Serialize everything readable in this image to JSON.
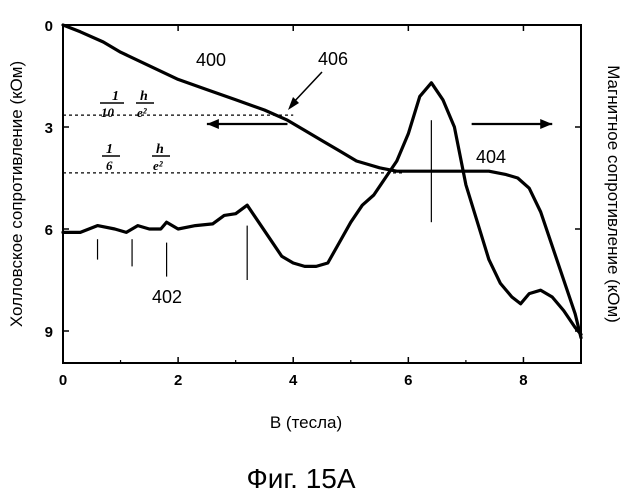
{
  "chart_data": {
    "type": "line",
    "caption": "Фиг. 15A",
    "xlabel": "B (тесла)",
    "ylabel_left": "Холловское сопротивление (кОм)",
    "ylabel_right": "Магнитное сопротивление (кОм)",
    "xlim": [
      0,
      9
    ],
    "ylim": [
      0,
      10
    ],
    "y_inverted": true,
    "x_ticks": [
      0,
      2,
      4,
      6,
      8
    ],
    "x_tick_labels": [
      "0",
      "2",
      "4",
      "6",
      "8"
    ],
    "y_ticks": [
      0,
      3,
      6,
      9
    ],
    "y_tick_labels": [
      "0",
      "3",
      "6",
      "9"
    ],
    "grid": false,
    "series": [
      {
        "name": "400",
        "x": [
          0,
          0.3,
          0.7,
          1.0,
          1.5,
          2.0,
          2.5,
          3.0,
          3.5,
          3.9,
          4.2,
          4.5,
          4.8,
          5.1,
          5.3,
          5.5,
          5.8,
          6.2,
          6.6,
          7.0,
          7.4,
          7.7,
          7.9,
          8.1,
          8.3,
          8.5,
          8.7,
          8.9,
          9.0
        ],
        "y": [
          0,
          0.2,
          0.5,
          0.8,
          1.2,
          1.6,
          1.9,
          2.2,
          2.5,
          2.8,
          3.1,
          3.4,
          3.7,
          4.0,
          4.1,
          4.2,
          4.3,
          4.3,
          4.3,
          4.3,
          4.3,
          4.4,
          4.5,
          4.8,
          5.5,
          6.5,
          7.5,
          8.5,
          9.2
        ]
      },
      {
        "name": "402",
        "x": [
          0,
          0.3,
          0.6,
          0.9,
          1.1,
          1.3,
          1.5,
          1.7,
          1.8,
          2.0,
          2.3,
          2.6,
          2.8,
          3.0,
          3.2,
          3.4,
          3.6,
          3.8,
          4.0,
          4.2,
          4.4,
          4.6,
          4.8,
          5.0,
          5.2,
          5.4,
          5.6,
          5.8,
          6.0,
          6.2,
          6.4,
          6.6,
          6.8,
          7.0,
          7.2,
          7.4,
          7.6,
          7.8,
          7.95,
          8.1,
          8.3,
          8.5,
          8.7,
          8.9,
          9.0
        ],
        "y": [
          6.1,
          6.1,
          5.9,
          6.0,
          6.1,
          5.9,
          6.0,
          6.0,
          5.8,
          6.0,
          5.9,
          5.85,
          5.6,
          5.55,
          5.3,
          5.8,
          6.3,
          6.8,
          7.0,
          7.1,
          7.1,
          7.0,
          6.4,
          5.8,
          5.3,
          5.0,
          4.5,
          4.0,
          3.2,
          2.1,
          1.7,
          2.2,
          3.0,
          4.7,
          5.8,
          6.9,
          7.6,
          8.0,
          8.2,
          7.9,
          7.8,
          8.0,
          8.4,
          8.9,
          9.1
        ]
      }
    ],
    "reference_lines": [
      {
        "label_num": "1",
        "label_den": "10",
        "h": "h",
        "e": "e²",
        "y": 2.65,
        "x_end": 4.0
      },
      {
        "label_num": "1",
        "label_den": "6",
        "h": "h",
        "e": "e²",
        "y": 4.35,
        "x_end": 5.9
      }
    ],
    "markers": [
      {
        "x": 0.6,
        "y0": 6.3,
        "y1": 6.9
      },
      {
        "x": 1.2,
        "y0": 6.3,
        "y1": 7.1
      },
      {
        "x": 1.8,
        "y0": 6.4,
        "y1": 7.4
      },
      {
        "x": 3.2,
        "y0": 5.9,
        "y1": 7.5
      },
      {
        "x": 6.4,
        "y0": 2.8,
        "y1": 5.8
      }
    ],
    "arrows": [
      {
        "direction": "left",
        "x_from": 3.9,
        "x_to": 2.5,
        "y": 3.0
      },
      {
        "direction": "right",
        "x_from": 7.1,
        "x_to": 8.5,
        "y": 3.0
      }
    ],
    "annotations": [
      "400",
      "402",
      "404",
      "406"
    ]
  }
}
